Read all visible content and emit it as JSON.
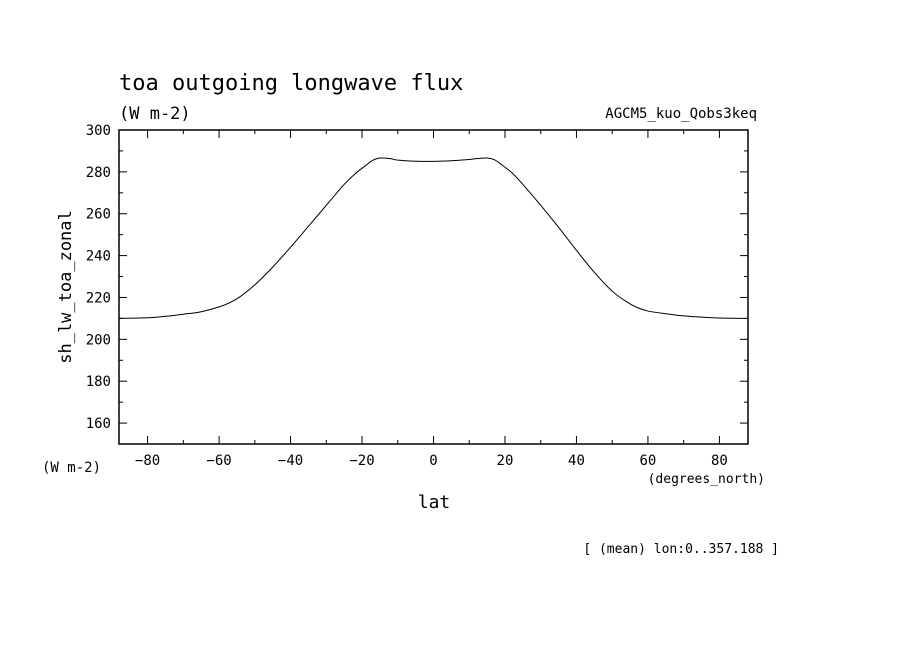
{
  "chart_data": {
    "type": "line",
    "title": "toa outgoing longwave flux",
    "subtitle": "(W m-2)",
    "experiment": "AGCM5_kuo_Qobs3keq",
    "ylabel": "sh_lw_toa_zonal",
    "yunit": "(W m-2)",
    "xlabel": "lat",
    "xunit": "(degrees_north)",
    "note": "[ (mean) lon:0..357.188 ]",
    "xlim": [
      -88,
      88
    ],
    "ylim": [
      150,
      300
    ],
    "xticks": [
      -80,
      -60,
      -40,
      -20,
      0,
      20,
      40,
      60,
      80
    ],
    "yticks": [
      160,
      180,
      200,
      220,
      240,
      260,
      280,
      300
    ],
    "grid": false,
    "series": [
      {
        "x": [
          -88,
          -80,
          -75,
          -70,
          -65,
          -60,
          -57,
          -54,
          -50,
          -45,
          -40,
          -35,
          -30,
          -25,
          -22,
          -19,
          -17,
          -15,
          -12,
          -10,
          -5,
          0,
          5,
          10,
          12,
          15,
          17,
          19,
          22,
          25,
          30,
          35,
          40,
          45,
          50,
          54,
          57,
          60,
          65,
          70,
          75,
          80,
          88
        ],
        "y": [
          210,
          210.3,
          211,
          212,
          213.2,
          215.5,
          217.5,
          220.5,
          226,
          234.5,
          244,
          254,
          264,
          274,
          279,
          283,
          285.5,
          286.6,
          286.3,
          285.6,
          285.1,
          285,
          285.3,
          285.9,
          286.3,
          286.6,
          285.8,
          283.5,
          279.5,
          274,
          264,
          253.5,
          242.5,
          232,
          223,
          218,
          215.2,
          213.5,
          212.2,
          211.2,
          210.6,
          210.2,
          210
        ]
      }
    ]
  }
}
